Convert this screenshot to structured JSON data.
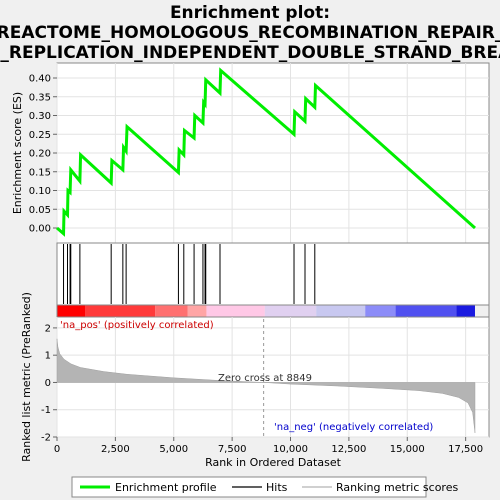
{
  "chart_data": {
    "type": "line",
    "title_lines": [
      "Enrichment plot:",
      "REACTOME_HOMOLOGOUS_RECOMBINATION_REPAIR_",
      "F_REPLICATION_INDEPENDENT_DOUBLE_STRAND_BREA"
    ],
    "es_panel": {
      "ylabel": "Enrichment score (ES)",
      "ylim": [
        -0.04,
        0.44
      ],
      "yticks": [
        "0.00",
        "0.05",
        "0.10",
        "0.15",
        "0.20",
        "0.25",
        "0.30",
        "0.35",
        "0.40"
      ],
      "ytick_values": [
        0.0,
        0.05,
        0.1,
        0.15,
        0.2,
        0.25,
        0.3,
        0.35,
        0.4
      ],
      "line_color": "#00ee00",
      "curve": [
        [
          0,
          0.0
        ],
        [
          280,
          -0.015
        ],
        [
          300,
          0.045
        ],
        [
          450,
          0.035
        ],
        [
          470,
          0.1
        ],
        [
          560,
          0.095
        ],
        [
          590,
          0.155
        ],
        [
          980,
          0.125
        ],
        [
          1010,
          0.195
        ],
        [
          2320,
          0.12
        ],
        [
          2350,
          0.18
        ],
        [
          2820,
          0.155
        ],
        [
          2850,
          0.215
        ],
        [
          2960,
          0.205
        ],
        [
          3000,
          0.27
        ],
        [
          5200,
          0.148
        ],
        [
          5230,
          0.208
        ],
        [
          5430,
          0.195
        ],
        [
          5460,
          0.26
        ],
        [
          5870,
          0.24
        ],
        [
          5900,
          0.3
        ],
        [
          6250,
          0.28
        ],
        [
          6280,
          0.335
        ],
        [
          6340,
          0.33
        ],
        [
          6370,
          0.395
        ],
        [
          6980,
          0.36
        ],
        [
          7010,
          0.42
        ],
        [
          10150,
          0.25
        ],
        [
          10180,
          0.31
        ],
        [
          10620,
          0.285
        ],
        [
          10650,
          0.345
        ],
        [
          11040,
          0.322
        ],
        [
          11070,
          0.38
        ],
        [
          17900,
          0.0
        ]
      ]
    },
    "hits": [
      280,
      450,
      560,
      590,
      980,
      2320,
      2820,
      2960,
      5200,
      5430,
      5870,
      6250,
      6340,
      6370,
      6980,
      10150,
      10620,
      11040
    ],
    "rank_bar": {
      "colors": [
        "#ff0000",
        "#ff3a3a",
        "#ff7070",
        "#ffa5a5",
        "#ffc8e6",
        "#e0d0f0",
        "#c8c8f0",
        "#8c8cf8",
        "#5050f0",
        "#1a1ae0"
      ],
      "boundaries": [
        0,
        1200,
        4200,
        5600,
        6400,
        8900,
        11100,
        13200,
        14500,
        17100,
        17900
      ]
    },
    "metric_panel": {
      "ylabel": "Ranked list metric (PreRanked)",
      "ylim": [
        -2,
        2.4
      ],
      "yticks": [
        "2",
        "1",
        "0",
        "-1",
        "-2"
      ],
      "ytick_values": [
        2,
        1,
        0,
        -1,
        -2
      ],
      "fill_color": "#b4b4b4",
      "curve": [
        [
          0,
          1.6
        ],
        [
          40,
          1.3
        ],
        [
          120,
          1.05
        ],
        [
          300,
          0.85
        ],
        [
          600,
          0.68
        ],
        [
          1000,
          0.55
        ],
        [
          2000,
          0.4
        ],
        [
          3000,
          0.3
        ],
        [
          5000,
          0.17
        ],
        [
          7000,
          0.07
        ],
        [
          8849,
          0.0
        ],
        [
          10000,
          -0.06
        ],
        [
          12000,
          -0.13
        ],
        [
          14000,
          -0.22
        ],
        [
          15500,
          -0.3
        ],
        [
          16500,
          -0.4
        ],
        [
          17200,
          -0.55
        ],
        [
          17600,
          -0.75
        ],
        [
          17800,
          -1.1
        ],
        [
          17900,
          -1.85
        ]
      ]
    },
    "x_axis": {
      "label": "Rank in Ordered Dataset",
      "xlim": [
        0,
        18500
      ],
      "ticks": [
        "0",
        "2,500",
        "5,000",
        "7,500",
        "10,000",
        "12,500",
        "15,000",
        "17,500"
      ],
      "tick_values": [
        0,
        2500,
        5000,
        7500,
        10000,
        12500,
        15000,
        17500
      ]
    },
    "zero_cross": 8849,
    "annotations": {
      "na_pos": "'na_pos' (positively correlated)",
      "na_neg": "'na_neg' (negatively correlated)",
      "zero_cross": "Zero cross at 8849",
      "pos_color": "#cc0000",
      "neg_color": "#0000cc"
    },
    "legend": [
      {
        "label": "Enrichment profile",
        "color": "#00ee00",
        "kind": "thick-line"
      },
      {
        "label": "Hits",
        "color": "#000000",
        "kind": "line"
      },
      {
        "label": "Ranking metric scores",
        "color": "#b4b4b4",
        "kind": "line"
      }
    ]
  }
}
